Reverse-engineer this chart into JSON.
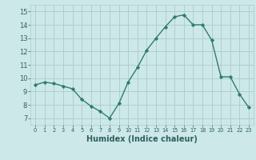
{
  "x": [
    0,
    1,
    2,
    3,
    4,
    5,
    6,
    7,
    8,
    9,
    10,
    11,
    12,
    13,
    14,
    15,
    16,
    17,
    18,
    19,
    20,
    21,
    22,
    23
  ],
  "y": [
    9.5,
    9.7,
    9.6,
    9.4,
    9.2,
    8.4,
    7.9,
    7.5,
    7.0,
    8.1,
    9.7,
    10.8,
    12.1,
    13.0,
    13.85,
    14.6,
    14.75,
    14.0,
    14.0,
    12.85,
    10.1,
    10.1,
    8.8,
    7.8
  ],
  "xlim": [
    -0.5,
    23.5
  ],
  "ylim": [
    6.5,
    15.5
  ],
  "yticks": [
    7,
    8,
    9,
    10,
    11,
    12,
    13,
    14,
    15
  ],
  "xticks": [
    0,
    1,
    2,
    3,
    4,
    5,
    6,
    7,
    8,
    9,
    10,
    11,
    12,
    13,
    14,
    15,
    16,
    17,
    18,
    19,
    20,
    21,
    22,
    23
  ],
  "xlabel": "Humidex (Indice chaleur)",
  "line_color": "#2e7d6e",
  "marker": "D",
  "marker_size": 2.2,
  "bg_color": "#cde8e8",
  "grid_color": "#aacccc",
  "label_color": "#2e5f5f",
  "tick_color": "#2e5f5f"
}
